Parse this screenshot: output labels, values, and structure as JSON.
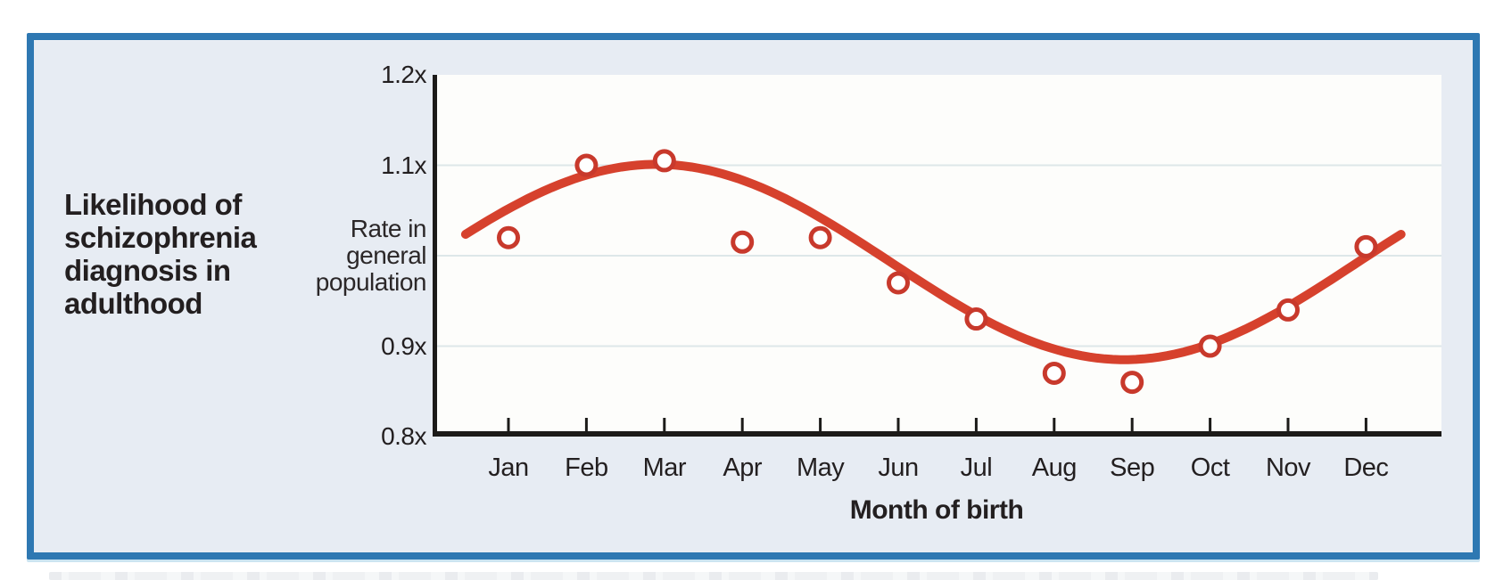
{
  "chart_data": {
    "type": "scatter",
    "title": "Likelihood of schizophrenia diagnosis in adulthood",
    "title_multiline": "Likelihood of\nschizophrenia\ndiagnosis in\nadulthood",
    "xlabel": "Month of birth",
    "y_axis_annotation": "Rate in\ngeneral\npopulation",
    "categories": [
      "Jan",
      "Feb",
      "Mar",
      "Apr",
      "May",
      "Jun",
      "Jul",
      "Aug",
      "Sep",
      "Oct",
      "Nov",
      "Dec"
    ],
    "values": [
      1.02,
      1.1,
      1.105,
      1.015,
      1.02,
      0.97,
      0.93,
      0.87,
      0.86,
      0.9,
      0.94,
      1.01
    ],
    "ylim": [
      0.8,
      1.2
    ],
    "y_ticks": [
      {
        "label": "1.2x",
        "value": 1.2
      },
      {
        "label": "1.1x",
        "value": 1.1
      },
      {
        "label": "0.9x",
        "value": 0.9
      },
      {
        "label": "0.8x",
        "value": 0.8
      }
    ],
    "grid_values": [
      1.1,
      1.0,
      0.9
    ],
    "legend": "none",
    "trend_curve": {
      "shape": "sinusoid",
      "midline": 0.993,
      "amplitude": 0.108,
      "peak_at_month_index": 1.9,
      "period_months": 12,
      "start_month_index": -0.55,
      "end_month_index": 11.5
    },
    "colors": {
      "series": "#d6412d",
      "point_stroke": "#c8392c",
      "point_fill": "#ffffff",
      "grid": "#dde7e9",
      "axis": "#1c1b19",
      "card_border": "#2e78b2",
      "card_bg": "#e7ecf3",
      "plot_bg": "#fdfdfb",
      "text": "#231f20"
    }
  }
}
